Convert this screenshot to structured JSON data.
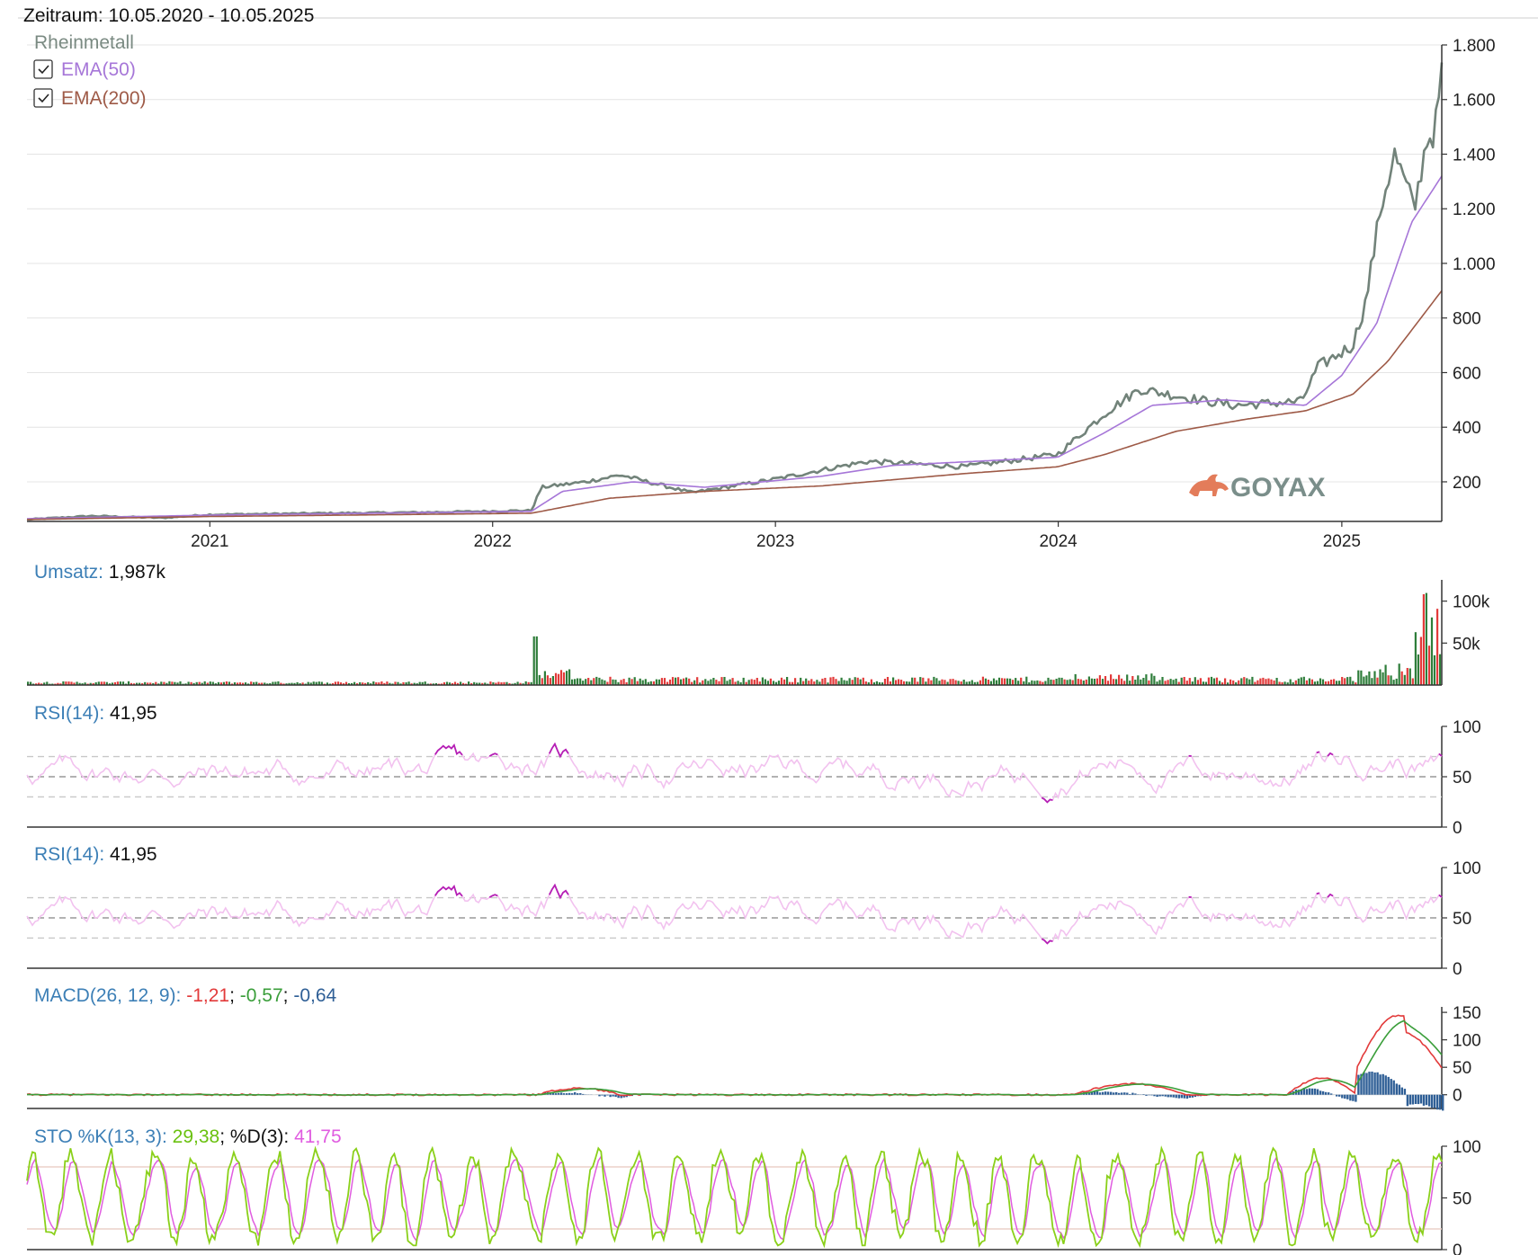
{
  "header": {
    "period_label": "Zeitraum: 10.05.2020 - 10.05.2025"
  },
  "watermark": "GOYAX",
  "colors": {
    "price": "#72837a",
    "ema50": "#a676d8",
    "ema200": "#9e5a47",
    "label_blue": "#3c7fb6",
    "rsi_strong": "#b51fb5",
    "rsi_light": "#f2c2ef",
    "vol_up": "#2e7d3a",
    "vol_down": "#e23a3a",
    "macd": "#e23a3a",
    "signal": "#3a9e3a",
    "hist": "#2f5f96",
    "sto_k": "#8ad01a",
    "sto_d": "#e05ce0",
    "logo": "#e37c5a",
    "logo_text": "#7a8e8a"
  },
  "main_chart": {
    "legend": [
      {
        "name": "Rheinmetall",
        "checkbox": false
      },
      {
        "name": "EMA(50)",
        "checkbox": true
      },
      {
        "name": "EMA(200)",
        "checkbox": true
      }
    ],
    "y_ticks": [
      "1.800",
      "1.600",
      "1.400",
      "1.200",
      "1.000",
      "800",
      "600",
      "400",
      "200"
    ],
    "x_ticks": [
      "2021",
      "2022",
      "2023",
      "2024",
      "2025"
    ]
  },
  "panels": {
    "volume": {
      "label": "Umsatz: ",
      "value": "1,987k",
      "y_ticks": [
        "100k",
        "50k"
      ]
    },
    "rsi1": {
      "label": "RSI(14): ",
      "value": "41,95",
      "y_ticks": [
        "100",
        "50",
        "0"
      ]
    },
    "rsi2": {
      "label": "RSI(14): ",
      "value": "41,95",
      "y_ticks": [
        "100",
        "50",
        "0"
      ]
    },
    "macd": {
      "label": "MACD(26, 12, 9): ",
      "v1": "-1,21",
      "sep1": "; ",
      "v2": "-0,57",
      "sep2": "; ",
      "v3": "-0,64",
      "y_ticks": [
        "150",
        "100",
        "50",
        "0"
      ]
    },
    "sto": {
      "label": "STO %K(13, 3): ",
      "k": "29,38",
      "sep": "; ",
      "d_label": "%D(3): ",
      "d": "41,75",
      "y_ticks": [
        "100",
        "50",
        "0"
      ]
    }
  },
  "chart_data": [
    {
      "type": "line",
      "x_range": [
        "2020-05-10",
        "2025-05-10"
      ],
      "ylim": [
        55,
        1800
      ],
      "series": [
        {
          "name": "Rheinmetall",
          "points": [
            [
              "2020-05-10",
              62
            ],
            [
              "2020-08-01",
              75
            ],
            [
              "2020-11-01",
              68
            ],
            [
              "2021-01-01",
              80
            ],
            [
              "2021-06-01",
              85
            ],
            [
              "2021-10-01",
              88
            ],
            [
              "2022-02-20",
              95
            ],
            [
              "2022-03-05",
              180
            ],
            [
              "2022-05-01",
              200
            ],
            [
              "2022-06-15",
              225
            ],
            [
              "2022-09-15",
              160
            ],
            [
              "2023-01-01",
              210
            ],
            [
              "2023-04-01",
              260
            ],
            [
              "2023-05-01",
              275
            ],
            [
              "2023-09-01",
              255
            ],
            [
              "2023-12-31",
              300
            ],
            [
              "2024-03-01",
              450
            ],
            [
              "2024-04-15",
              540
            ],
            [
              "2024-07-01",
              500
            ],
            [
              "2024-08-15",
              480
            ],
            [
              "2024-11-10",
              495
            ],
            [
              "2024-12-01",
              620
            ],
            [
              "2025-01-15",
              700
            ],
            [
              "2025-02-01",
              860
            ],
            [
              "2025-02-20",
              1200
            ],
            [
              "2025-03-10",
              1400
            ],
            [
              "2025-04-05",
              1200
            ],
            [
              "2025-04-20",
              1450
            ],
            [
              "2025-05-01",
              1480
            ],
            [
              "2025-05-10",
              1700
            ]
          ]
        },
        {
          "name": "EMA(50)",
          "points": [
            [
              "2020-05-10",
              65
            ],
            [
              "2021-01-01",
              78
            ],
            [
              "2022-02-20",
              92
            ],
            [
              "2022-04-01",
              165
            ],
            [
              "2022-07-01",
              200
            ],
            [
              "2022-10-01",
              180
            ],
            [
              "2023-03-01",
              220
            ],
            [
              "2023-06-01",
              260
            ],
            [
              "2023-12-31",
              290
            ],
            [
              "2024-03-01",
              380
            ],
            [
              "2024-05-01",
              480
            ],
            [
              "2024-08-01",
              500
            ],
            [
              "2024-11-15",
              480
            ],
            [
              "2025-01-01",
              590
            ],
            [
              "2025-02-15",
              780
            ],
            [
              "2025-04-01",
              1150
            ],
            [
              "2025-05-10",
              1320
            ]
          ]
        },
        {
          "name": "EMA(200)",
          "points": [
            [
              "2020-05-10",
              62
            ],
            [
              "2021-01-01",
              73
            ],
            [
              "2022-02-20",
              85
            ],
            [
              "2022-06-01",
              140
            ],
            [
              "2022-10-01",
              165
            ],
            [
              "2023-03-01",
              185
            ],
            [
              "2023-09-01",
              230
            ],
            [
              "2023-12-31",
              255
            ],
            [
              "2024-03-01",
              300
            ],
            [
              "2024-06-01",
              385
            ],
            [
              "2024-09-01",
              430
            ],
            [
              "2024-11-15",
              460
            ],
            [
              "2025-01-15",
              520
            ],
            [
              "2025-03-01",
              640
            ],
            [
              "2025-05-10",
              900
            ]
          ]
        }
      ]
    },
    {
      "type": "bar",
      "name": "Umsatz",
      "ylim": [
        0,
        120000
      ],
      "unit": "k",
      "last_value": 1987
    },
    {
      "type": "line",
      "name": "RSI(14)",
      "ylim": [
        0,
        100
      ],
      "reference_lines": [
        30,
        50,
        70
      ],
      "last_value": 41.95
    },
    {
      "type": "line",
      "name": "RSI(14)",
      "ylim": [
        0,
        100
      ],
      "reference_lines": [
        30,
        50,
        70
      ],
      "last_value": 41.95
    },
    {
      "type": "line",
      "name": "MACD(26, 12, 9)",
      "ylim": [
        -25,
        160
      ],
      "last_values": [
        -1.21,
        -0.57,
        -0.64
      ]
    },
    {
      "type": "line",
      "name": "STO %K(13, 3)",
      "ylim": [
        0,
        100
      ],
      "reference_lines": [
        20,
        80
      ],
      "last_values": {
        "k": 29.38,
        "d": 41.75
      }
    }
  ]
}
